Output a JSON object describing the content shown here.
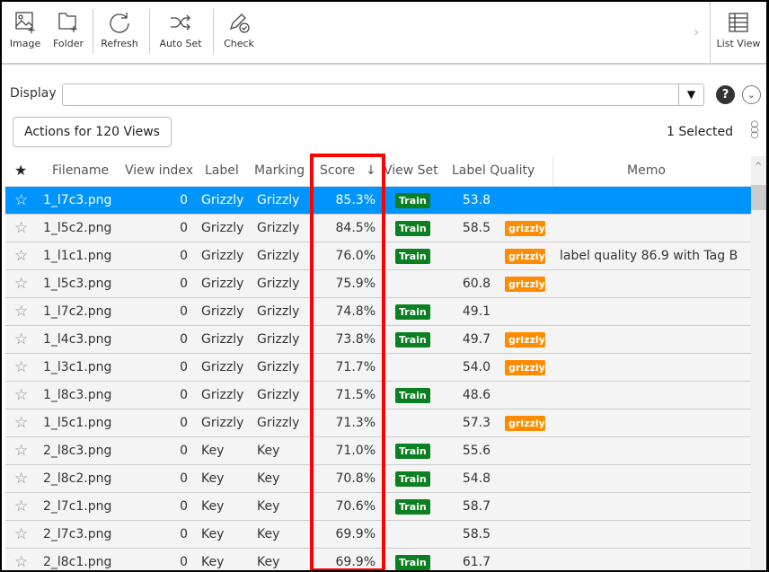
{
  "toolbar": {
    "image": "Image",
    "folder": "Folder",
    "refresh": "Refresh",
    "auto_set": "Auto Set",
    "check": "Check",
    "list_view": "List  View"
  },
  "display": {
    "label": "Display",
    "value": ""
  },
  "actions_label": "Actions for 120 Views",
  "selected_label": "1  Selected",
  "columns": {
    "filename": "Filename",
    "view_index": "View index",
    "label": "Label",
    "marking": "Marking",
    "score": "Score",
    "sort_arrow": "↓",
    "view_set": "View Set",
    "label_quality": "Label Quality",
    "memo": "Memo"
  },
  "colors": {
    "selected_row": "#0094ff",
    "train_badge": "#0a8020",
    "tag_badge": "#ff8c00",
    "highlight_box": "#ff0000"
  },
  "rows": [
    {
      "filename": "1_l7c3.png",
      "view_index": "0",
      "label": "Grizzly",
      "marking": "Grizzly",
      "score": "85.3%",
      "view_set": "Train",
      "label_quality": "53.8",
      "tag": "",
      "memo": "",
      "selected": true
    },
    {
      "filename": "1_l5c2.png",
      "view_index": "0",
      "label": "Grizzly",
      "marking": "Grizzly",
      "score": "84.5%",
      "view_set": "Train",
      "label_quality": "58.5",
      "tag": "grizzly-",
      "memo": ""
    },
    {
      "filename": "1_l1c1.png",
      "view_index": "0",
      "label": "Grizzly",
      "marking": "Grizzly",
      "score": "76.0%",
      "view_set": "Train",
      "label_quality": "",
      "tag": "grizzly-",
      "memo": "label quality 86.9 with Tag B"
    },
    {
      "filename": "1_l5c3.png",
      "view_index": "0",
      "label": "Grizzly",
      "marking": "Grizzly",
      "score": "75.9%",
      "view_set": "",
      "label_quality": "60.8",
      "tag": "grizzly-",
      "memo": ""
    },
    {
      "filename": "1_l7c2.png",
      "view_index": "0",
      "label": "Grizzly",
      "marking": "Grizzly",
      "score": "74.8%",
      "view_set": "Train",
      "label_quality": "49.1",
      "tag": "",
      "memo": ""
    },
    {
      "filename": "1_l4c3.png",
      "view_index": "0",
      "label": "Grizzly",
      "marking": "Grizzly",
      "score": "73.8%",
      "view_set": "Train",
      "label_quality": "49.7",
      "tag": "grizzly-",
      "memo": ""
    },
    {
      "filename": "1_l3c1.png",
      "view_index": "0",
      "label": "Grizzly",
      "marking": "Grizzly",
      "score": "71.7%",
      "view_set": "",
      "label_quality": "54.0",
      "tag": "grizzly-",
      "memo": ""
    },
    {
      "filename": "1_l8c3.png",
      "view_index": "0",
      "label": "Grizzly",
      "marking": "Grizzly",
      "score": "71.5%",
      "view_set": "Train",
      "label_quality": "48.6",
      "tag": "",
      "memo": ""
    },
    {
      "filename": "1_l5c1.png",
      "view_index": "0",
      "label": "Grizzly",
      "marking": "Grizzly",
      "score": "71.3%",
      "view_set": "",
      "label_quality": "57.3",
      "tag": "grizzly-",
      "memo": ""
    },
    {
      "filename": "2_l8c3.png",
      "view_index": "0",
      "label": "Key",
      "marking": "Key",
      "score": "71.0%",
      "view_set": "Train",
      "label_quality": "55.6",
      "tag": "",
      "memo": ""
    },
    {
      "filename": "2_l8c2.png",
      "view_index": "0",
      "label": "Key",
      "marking": "Key",
      "score": "70.8%",
      "view_set": "Train",
      "label_quality": "54.8",
      "tag": "",
      "memo": ""
    },
    {
      "filename": "2_l7c1.png",
      "view_index": "0",
      "label": "Key",
      "marking": "Key",
      "score": "70.6%",
      "view_set": "Train",
      "label_quality": "58.7",
      "tag": "",
      "memo": ""
    },
    {
      "filename": "2_l7c3.png",
      "view_index": "0",
      "label": "Key",
      "marking": "Key",
      "score": "69.9%",
      "view_set": "",
      "label_quality": "58.5",
      "tag": "",
      "memo": ""
    },
    {
      "filename": "2_l8c1.png",
      "view_index": "0",
      "label": "Key",
      "marking": "Key",
      "score": "69.9%",
      "view_set": "Train",
      "label_quality": "61.7",
      "tag": "",
      "memo": ""
    }
  ]
}
